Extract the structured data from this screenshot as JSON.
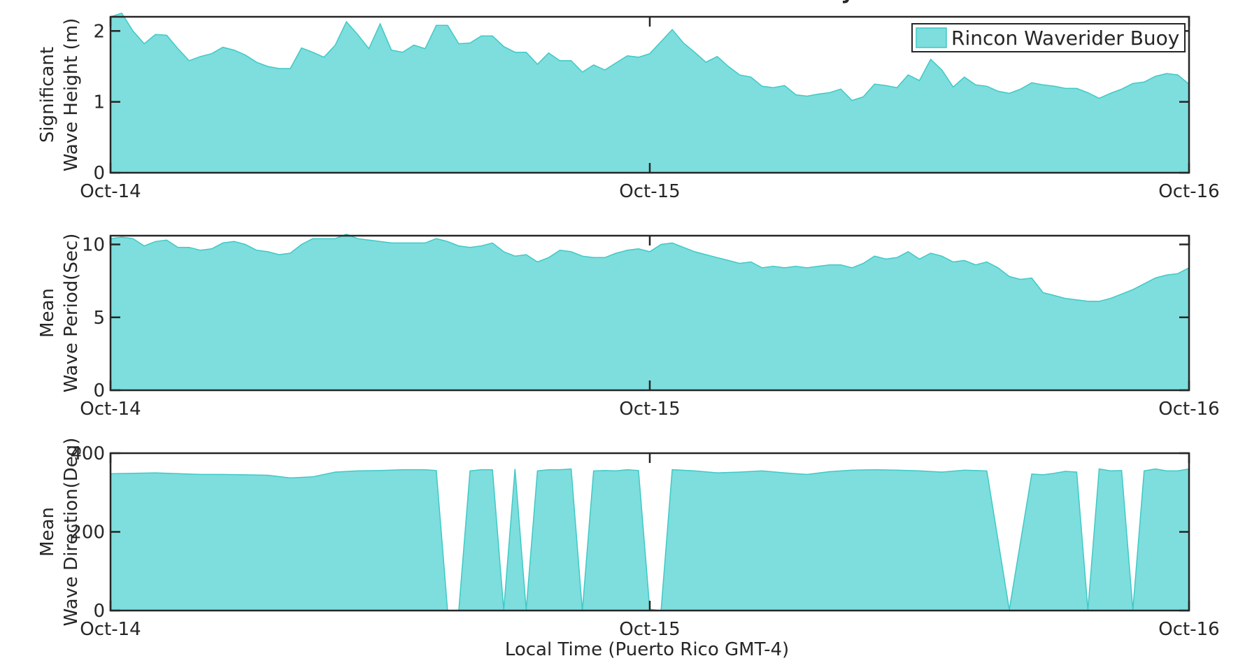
{
  "figure": {
    "title_fragment": "y",
    "xlabel": "Local Time (Puerto Rico GMT-4)",
    "legend_label": "Rincon Waverider Buoy",
    "fill_color": "#7ddedd",
    "edge_color": "#40c9c6"
  },
  "chart_data": [
    {
      "type": "area",
      "ylabel_lines": [
        "Significant",
        "Wave Height (m)"
      ],
      "ylim": [
        0,
        2.2
      ],
      "yticks": [
        0,
        1,
        2
      ],
      "xlim": [
        "Oct-14",
        "Oct-16"
      ],
      "xticks": [
        "Oct-14",
        "Oct-15",
        "Oct-16"
      ],
      "legend": "top-right",
      "series": [
        {
          "name": "Rincon Waverider Buoy",
          "t_hours": [
            0,
            0.5,
            1,
            1.5,
            2,
            2.5,
            3,
            3.5,
            4,
            4.5,
            5,
            5.5,
            6,
            6.5,
            7,
            7.5,
            8,
            8.5,
            9,
            9.5,
            10,
            10.5,
            11,
            11.5,
            12,
            12.5,
            13,
            13.5,
            14,
            14.5,
            15,
            15.5,
            16,
            16.5,
            17,
            17.5,
            18,
            18.5,
            19,
            19.5,
            20,
            20.5,
            21,
            21.5,
            22,
            22.5,
            23,
            23.5,
            24,
            24.5,
            25,
            25.5,
            26,
            26.5,
            27,
            27.5,
            28,
            28.5,
            29,
            29.5,
            30,
            30.5,
            31,
            31.5,
            32,
            32.5,
            33,
            33.5,
            34,
            34.5,
            35,
            35.5,
            36,
            36.5,
            37,
            37.5,
            38,
            38.5,
            39,
            39.5,
            40,
            40.5,
            41,
            41.5,
            42,
            42.5,
            43,
            43.5,
            44,
            44.5,
            45,
            45.5,
            46,
            46.5,
            47,
            47.5,
            48
          ],
          "values": [
            2.2,
            2.25,
            2.0,
            1.82,
            1.95,
            1.94,
            1.75,
            1.58,
            1.64,
            1.68,
            1.77,
            1.73,
            1.66,
            1.56,
            1.5,
            1.47,
            1.47,
            1.76,
            1.7,
            1.63,
            1.8,
            2.13,
            1.95,
            1.75,
            2.1,
            1.73,
            1.7,
            1.8,
            1.75,
            2.08,
            2.08,
            1.82,
            1.83,
            1.93,
            1.93,
            1.78,
            1.7,
            1.7,
            1.53,
            1.69,
            1.58,
            1.58,
            1.42,
            1.52,
            1.45,
            1.55,
            1.65,
            1.63,
            1.68,
            1.85,
            2.02,
            1.83,
            1.7,
            1.56,
            1.64,
            1.5,
            1.38,
            1.35,
            1.22,
            1.2,
            1.23,
            1.1,
            1.08,
            1.11,
            1.13,
            1.18,
            1.02,
            1.07,
            1.25,
            1.23,
            1.2,
            1.38,
            1.3,
            1.6,
            1.45,
            1.21,
            1.35,
            1.24,
            1.22,
            1.15,
            1.12,
            1.18,
            1.27,
            1.24,
            1.22,
            1.19,
            1.19,
            1.13,
            1.05,
            1.12,
            1.18,
            1.26,
            1.28,
            1.36,
            1.4,
            1.38,
            1.25
          ]
        }
      ]
    },
    {
      "type": "area",
      "ylabel_lines": [
        "Mean",
        "Wave Period(Sec)"
      ],
      "ylim": [
        0,
        10.6
      ],
      "yticks": [
        0,
        5,
        10
      ],
      "xlim": [
        "Oct-14",
        "Oct-16"
      ],
      "xticks": [
        "Oct-14",
        "Oct-15",
        "Oct-16"
      ],
      "series": [
        {
          "name": "Rincon Waverider Buoy",
          "t_hours": [
            0,
            0.5,
            1,
            1.5,
            2,
            2.5,
            3,
            3.5,
            4,
            4.5,
            5,
            5.5,
            6,
            6.5,
            7,
            7.5,
            8,
            8.5,
            9,
            9.5,
            10,
            10.5,
            11,
            11.5,
            12,
            12.5,
            13,
            13.5,
            14,
            14.5,
            15,
            15.5,
            16,
            16.5,
            17,
            17.5,
            18,
            18.5,
            19,
            19.5,
            20,
            20.5,
            21,
            21.5,
            22,
            22.5,
            23,
            23.5,
            24,
            24.5,
            25,
            25.5,
            26,
            26.5,
            27,
            27.5,
            28,
            28.5,
            29,
            29.5,
            30,
            30.5,
            31,
            31.5,
            32,
            32.5,
            33,
            33.5,
            34,
            34.5,
            35,
            35.5,
            36,
            36.5,
            37,
            37.5,
            38,
            38.5,
            39,
            39.5,
            40,
            40.5,
            41,
            41.5,
            42,
            42.5,
            43,
            43.5,
            44,
            44.5,
            45,
            45.5,
            46,
            46.5,
            47,
            47.5,
            48
          ],
          "values": [
            10.4,
            10.5,
            10.4,
            9.9,
            10.2,
            10.3,
            9.8,
            9.8,
            9.6,
            9.7,
            10.1,
            10.2,
            10.0,
            9.6,
            9.5,
            9.3,
            9.4,
            10.0,
            10.4,
            10.4,
            10.4,
            10.7,
            10.4,
            10.3,
            10.2,
            10.1,
            10.1,
            10.1,
            10.1,
            10.4,
            10.2,
            9.9,
            9.8,
            9.9,
            10.1,
            9.5,
            9.2,
            9.3,
            8.8,
            9.1,
            9.6,
            9.5,
            9.2,
            9.1,
            9.1,
            9.4,
            9.6,
            9.7,
            9.5,
            10.0,
            10.1,
            9.8,
            9.5,
            9.3,
            9.1,
            8.9,
            8.7,
            8.8,
            8.4,
            8.5,
            8.4,
            8.5,
            8.4,
            8.5,
            8.6,
            8.6,
            8.4,
            8.7,
            9.2,
            9.0,
            9.1,
            9.5,
            9.0,
            9.4,
            9.2,
            8.8,
            8.9,
            8.6,
            8.8,
            8.4,
            7.8,
            7.6,
            7.7,
            6.7,
            6.5,
            6.3,
            6.2,
            6.1,
            6.1,
            6.3,
            6.6,
            6.9,
            7.3,
            7.7,
            7.9,
            8.0,
            8.4
          ]
        }
      ]
    },
    {
      "type": "area",
      "ylabel_lines": [
        "Mean",
        "Wave Direction(Deg)"
      ],
      "ylim": [
        0,
        400
      ],
      "yticks": [
        0,
        200,
        400
      ],
      "xlim": [
        "Oct-14",
        "Oct-16"
      ],
      "xticks": [
        "Oct-14",
        "Oct-15",
        "Oct-16"
      ],
      "series": [
        {
          "name": "Rincon Waverider Buoy",
          "t_hours": [
            0,
            1,
            2,
            3,
            4,
            5,
            6,
            7,
            8,
            9,
            10,
            11,
            12,
            13,
            14,
            14.5,
            15,
            15.5,
            16,
            16.5,
            17,
            17.5,
            18,
            18.5,
            19,
            19.5,
            20,
            20.5,
            21,
            21.5,
            22,
            22.5,
            23,
            23.5,
            24,
            24.5,
            25,
            26,
            27,
            28,
            29,
            30,
            31,
            32,
            33,
            34,
            35,
            36,
            37,
            38,
            39,
            40,
            41,
            41.5,
            42,
            42.5,
            43,
            43.5,
            44,
            44.5,
            45,
            45.5,
            46,
            46.5,
            47,
            47.5,
            48
          ],
          "values": [
            348,
            349,
            350,
            348,
            346,
            346,
            345,
            344,
            337,
            340,
            352,
            355,
            356,
            358,
            358,
            356,
            0,
            0,
            355,
            358,
            358,
            2,
            360,
            2,
            355,
            358,
            358,
            360,
            0,
            355,
            356,
            355,
            358,
            356,
            3,
            0,
            358,
            355,
            350,
            352,
            355,
            350,
            346,
            353,
            357,
            358,
            357,
            355,
            352,
            357,
            355,
            2,
            347,
            345,
            349,
            354,
            352,
            2,
            360,
            355,
            356,
            2,
            355,
            360,
            355,
            355,
            360
          ]
        }
      ]
    }
  ]
}
